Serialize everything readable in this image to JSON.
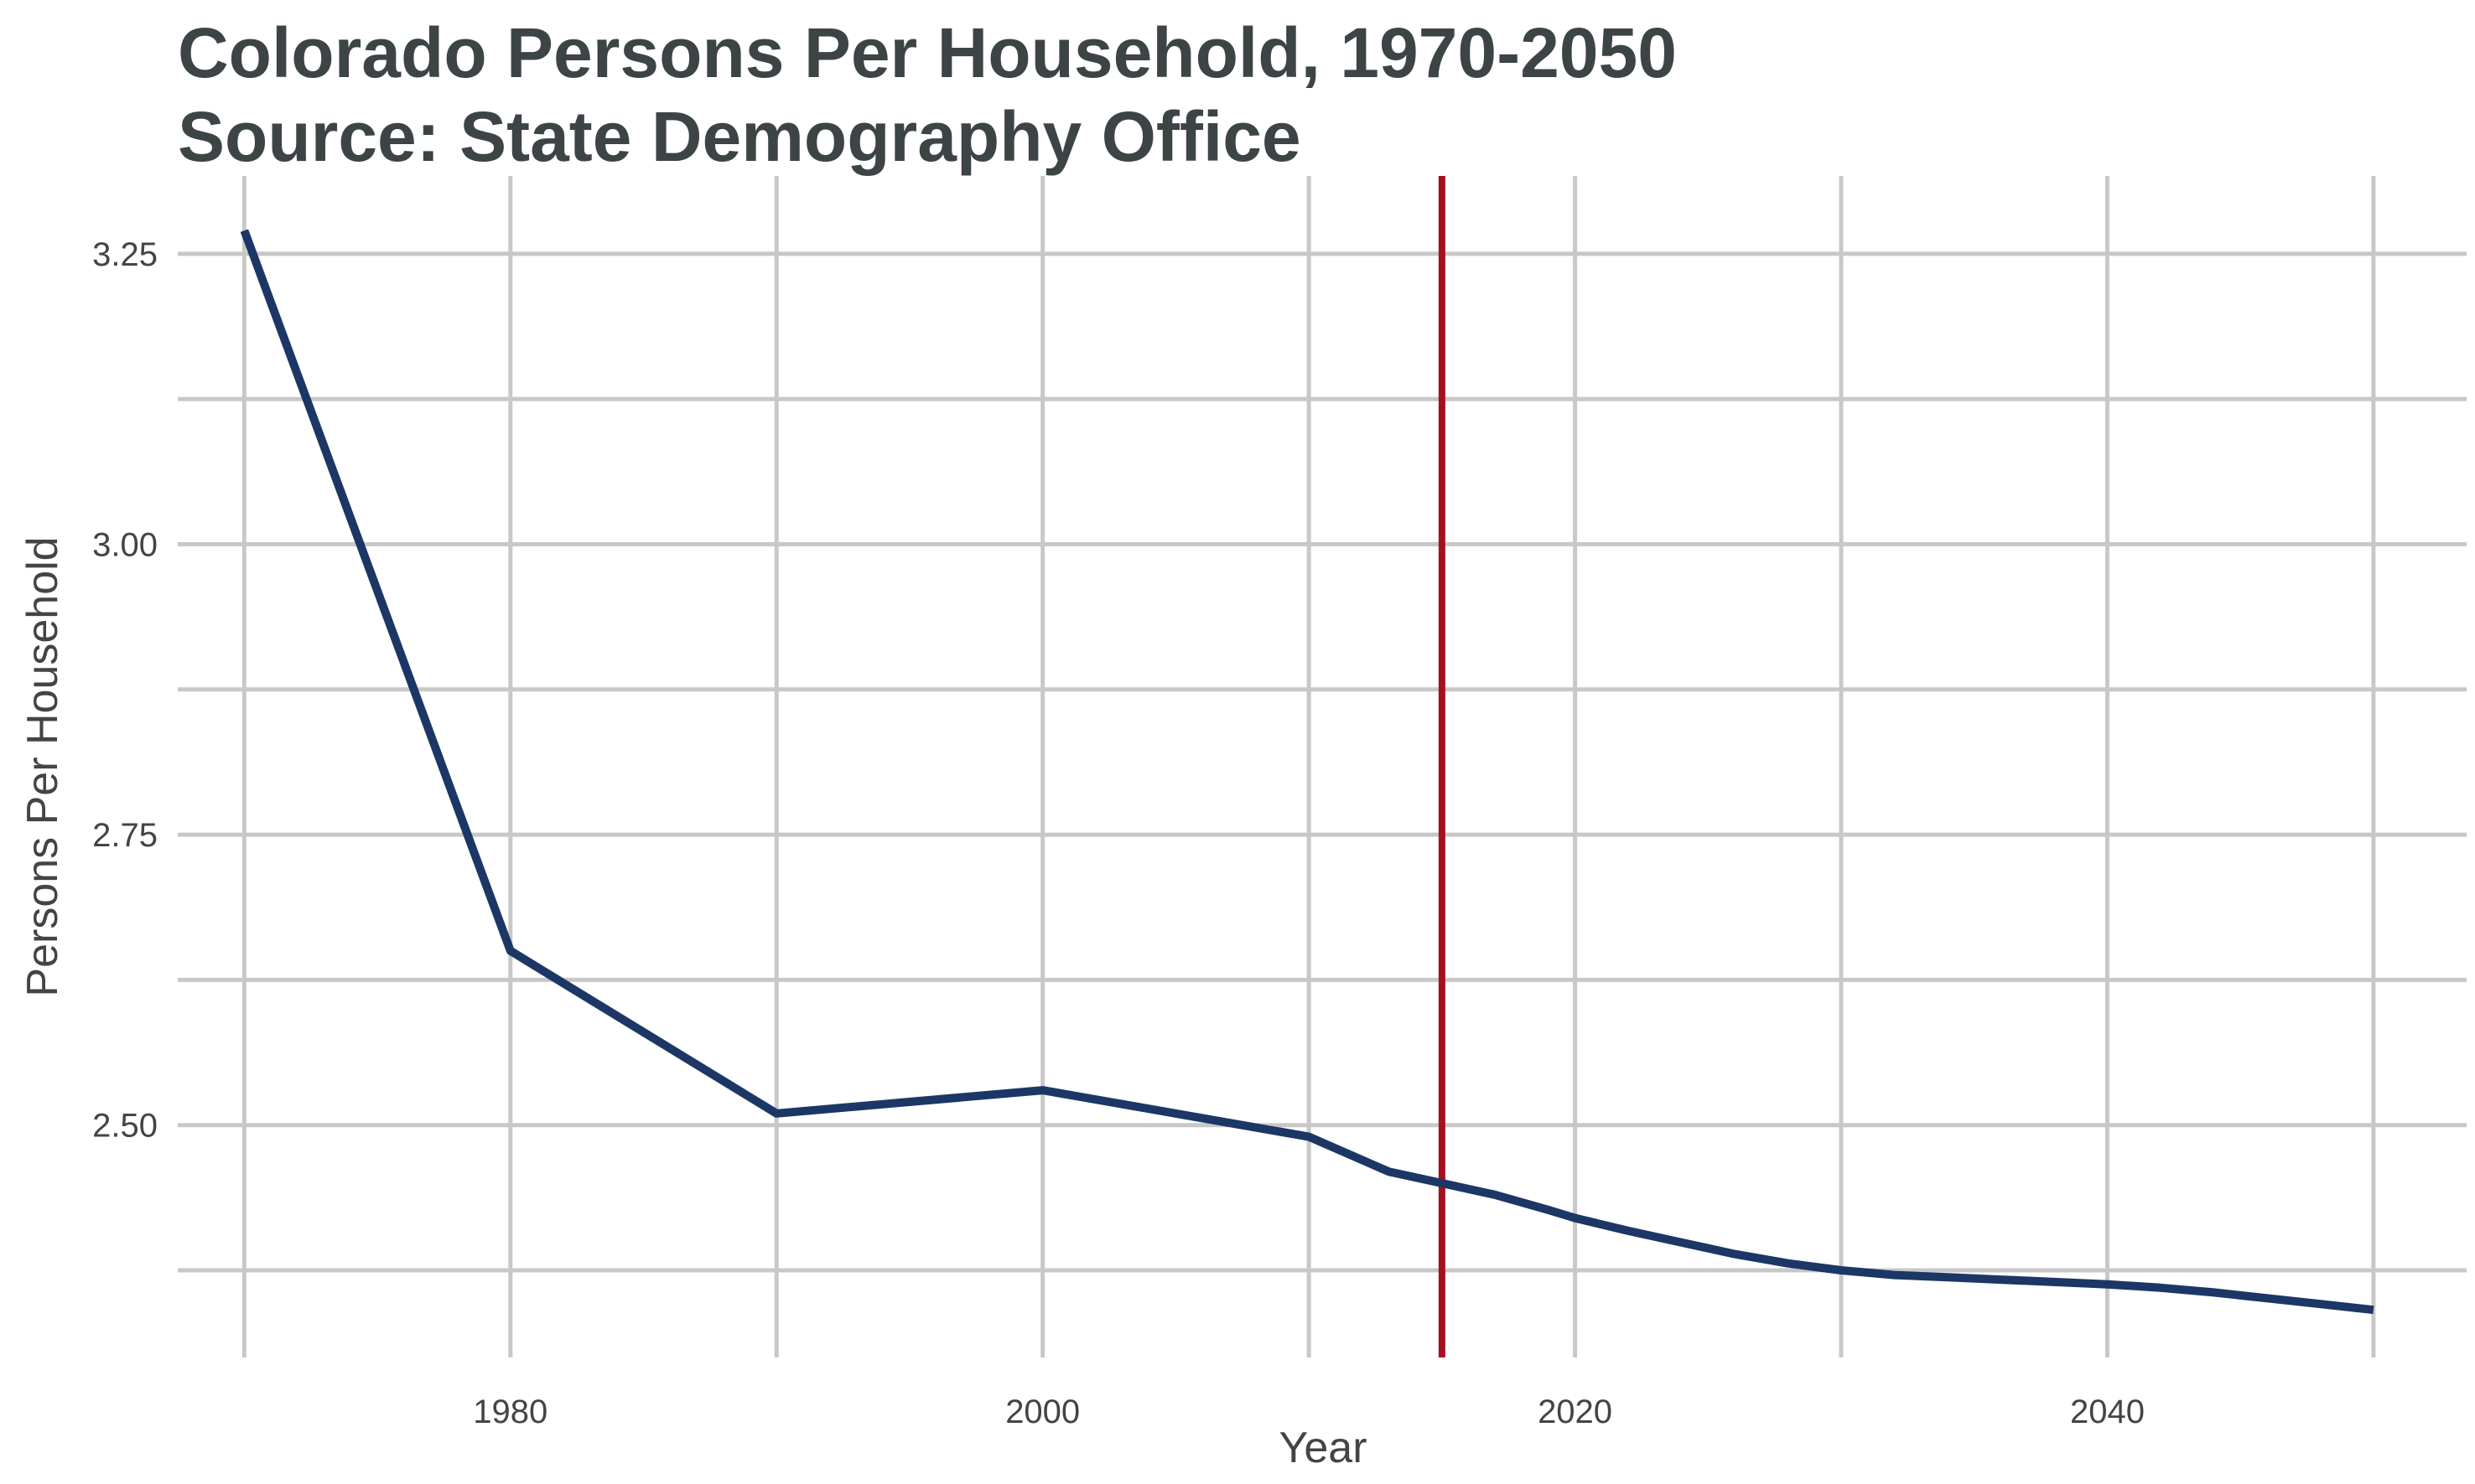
{
  "chart_data": {
    "type": "line",
    "title": "Colorado Persons Per Household, 1970-2050",
    "subtitle": "Source: State Demography Office",
    "xlabel": "Year",
    "ylabel": "Persons Per Household",
    "xlim": [
      1967.5,
      2053.5
    ],
    "ylim": [
      2.3,
      3.317
    ],
    "x_ticks": [
      1980,
      2000,
      2020,
      2040
    ],
    "x_minor_ticks": [
      1970,
      1990,
      2010,
      2030,
      2050
    ],
    "y_ticks": [
      2.5,
      2.75,
      3.0,
      3.25
    ],
    "y_tick_labels": [
      "2.50",
      "2.75",
      "3.00",
      "3.25"
    ],
    "y_minor_ticks": [
      2.375,
      2.625,
      2.875,
      3.125
    ],
    "grid": true,
    "series": [
      {
        "color": "#1c3766",
        "x": [
          1970,
          1980,
          1990,
          2000,
          2010,
          2012,
          2013,
          2015,
          2017,
          2019,
          2020,
          2022,
          2024,
          2026,
          2028,
          2030,
          2032,
          2034,
          2036,
          2038,
          2040,
          2042,
          2044,
          2046,
          2048,
          2050
        ],
        "y": [
          3.27,
          2.65,
          2.51,
          2.53,
          2.49,
          2.47,
          2.46,
          2.45,
          2.44,
          2.427,
          2.42,
          2.409,
          2.399,
          2.389,
          2.381,
          2.375,
          2.371,
          2.369,
          2.367,
          2.365,
          2.363,
          2.36,
          2.356,
          2.351,
          2.346,
          2.341
        ]
      }
    ],
    "reference_lines": [
      {
        "axis": "x",
        "value": 2015,
        "color": "#a50f1e"
      }
    ]
  }
}
